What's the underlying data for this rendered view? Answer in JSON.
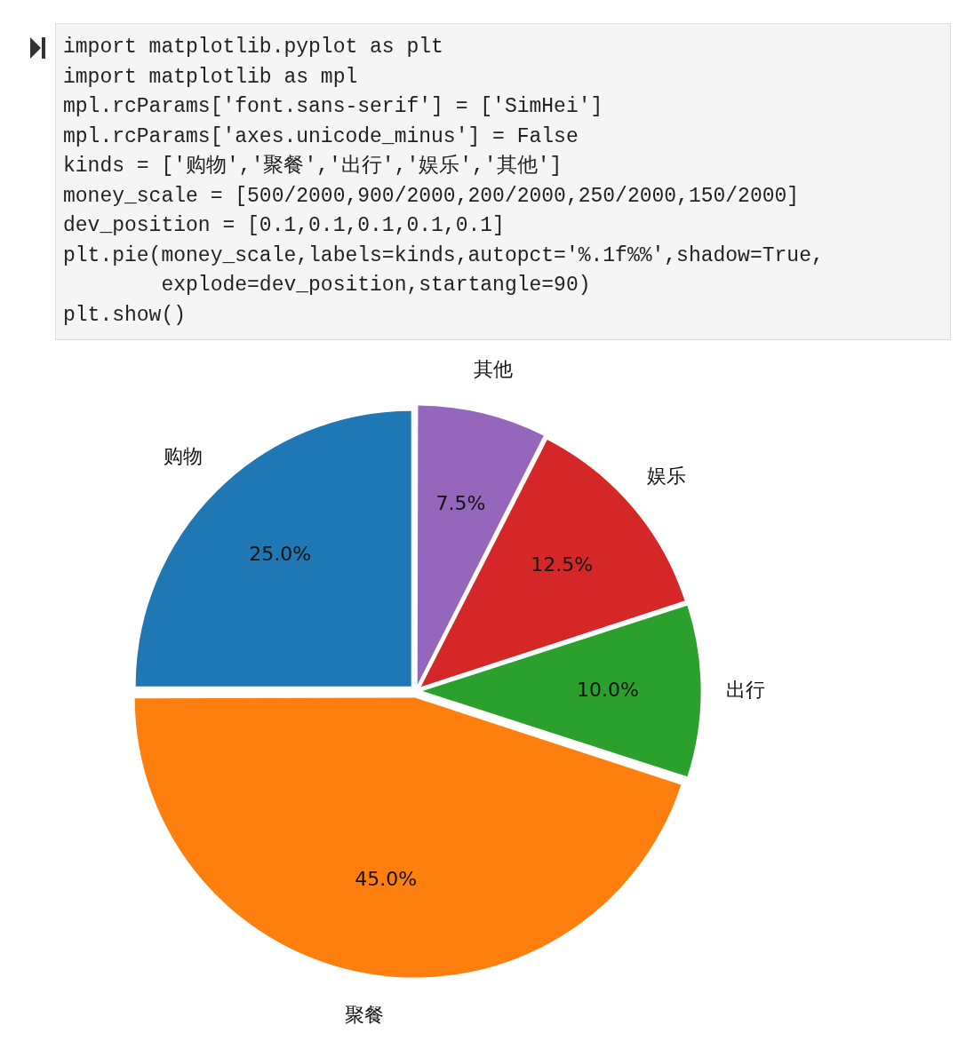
{
  "chart_data": {
    "type": "pie",
    "categories": [
      "购物",
      "聚餐",
      "出行",
      "娱乐",
      "其他"
    ],
    "values": [
      25,
      45,
      10,
      12.5,
      7.5
    ],
    "colors": [
      "#1f77b4",
      "#ff7f0e",
      "#2ca02c",
      "#d62728",
      "#9467bd"
    ],
    "value_labels": [
      "25.0%",
      "45.0%",
      "10.0%",
      "12.5%",
      "7.5%"
    ],
    "legend": false,
    "annotations": [
      "import matplotlib.pyplot as plt",
      "import matplotlib as mpl",
      "mpl.rcParams['font.sans-serif'] = ['SimHei']",
      "mpl.rcParams['axes.unicode_minus'] = False",
      "kinds = ['购物','聚餐','出行','娱乐','其他']",
      "money_scale = [500/2000,900/2000,200/2000,250/2000,150/2000]",
      "dev_position = [0.1,0.1,0.1,0.1,0.1]",
      "plt.pie(money_scale,labels=kinds,autopct='%.1f%%',shadow=True,",
      "        explode=dev_position,startangle=90)",
      "plt.show()"
    ]
  }
}
